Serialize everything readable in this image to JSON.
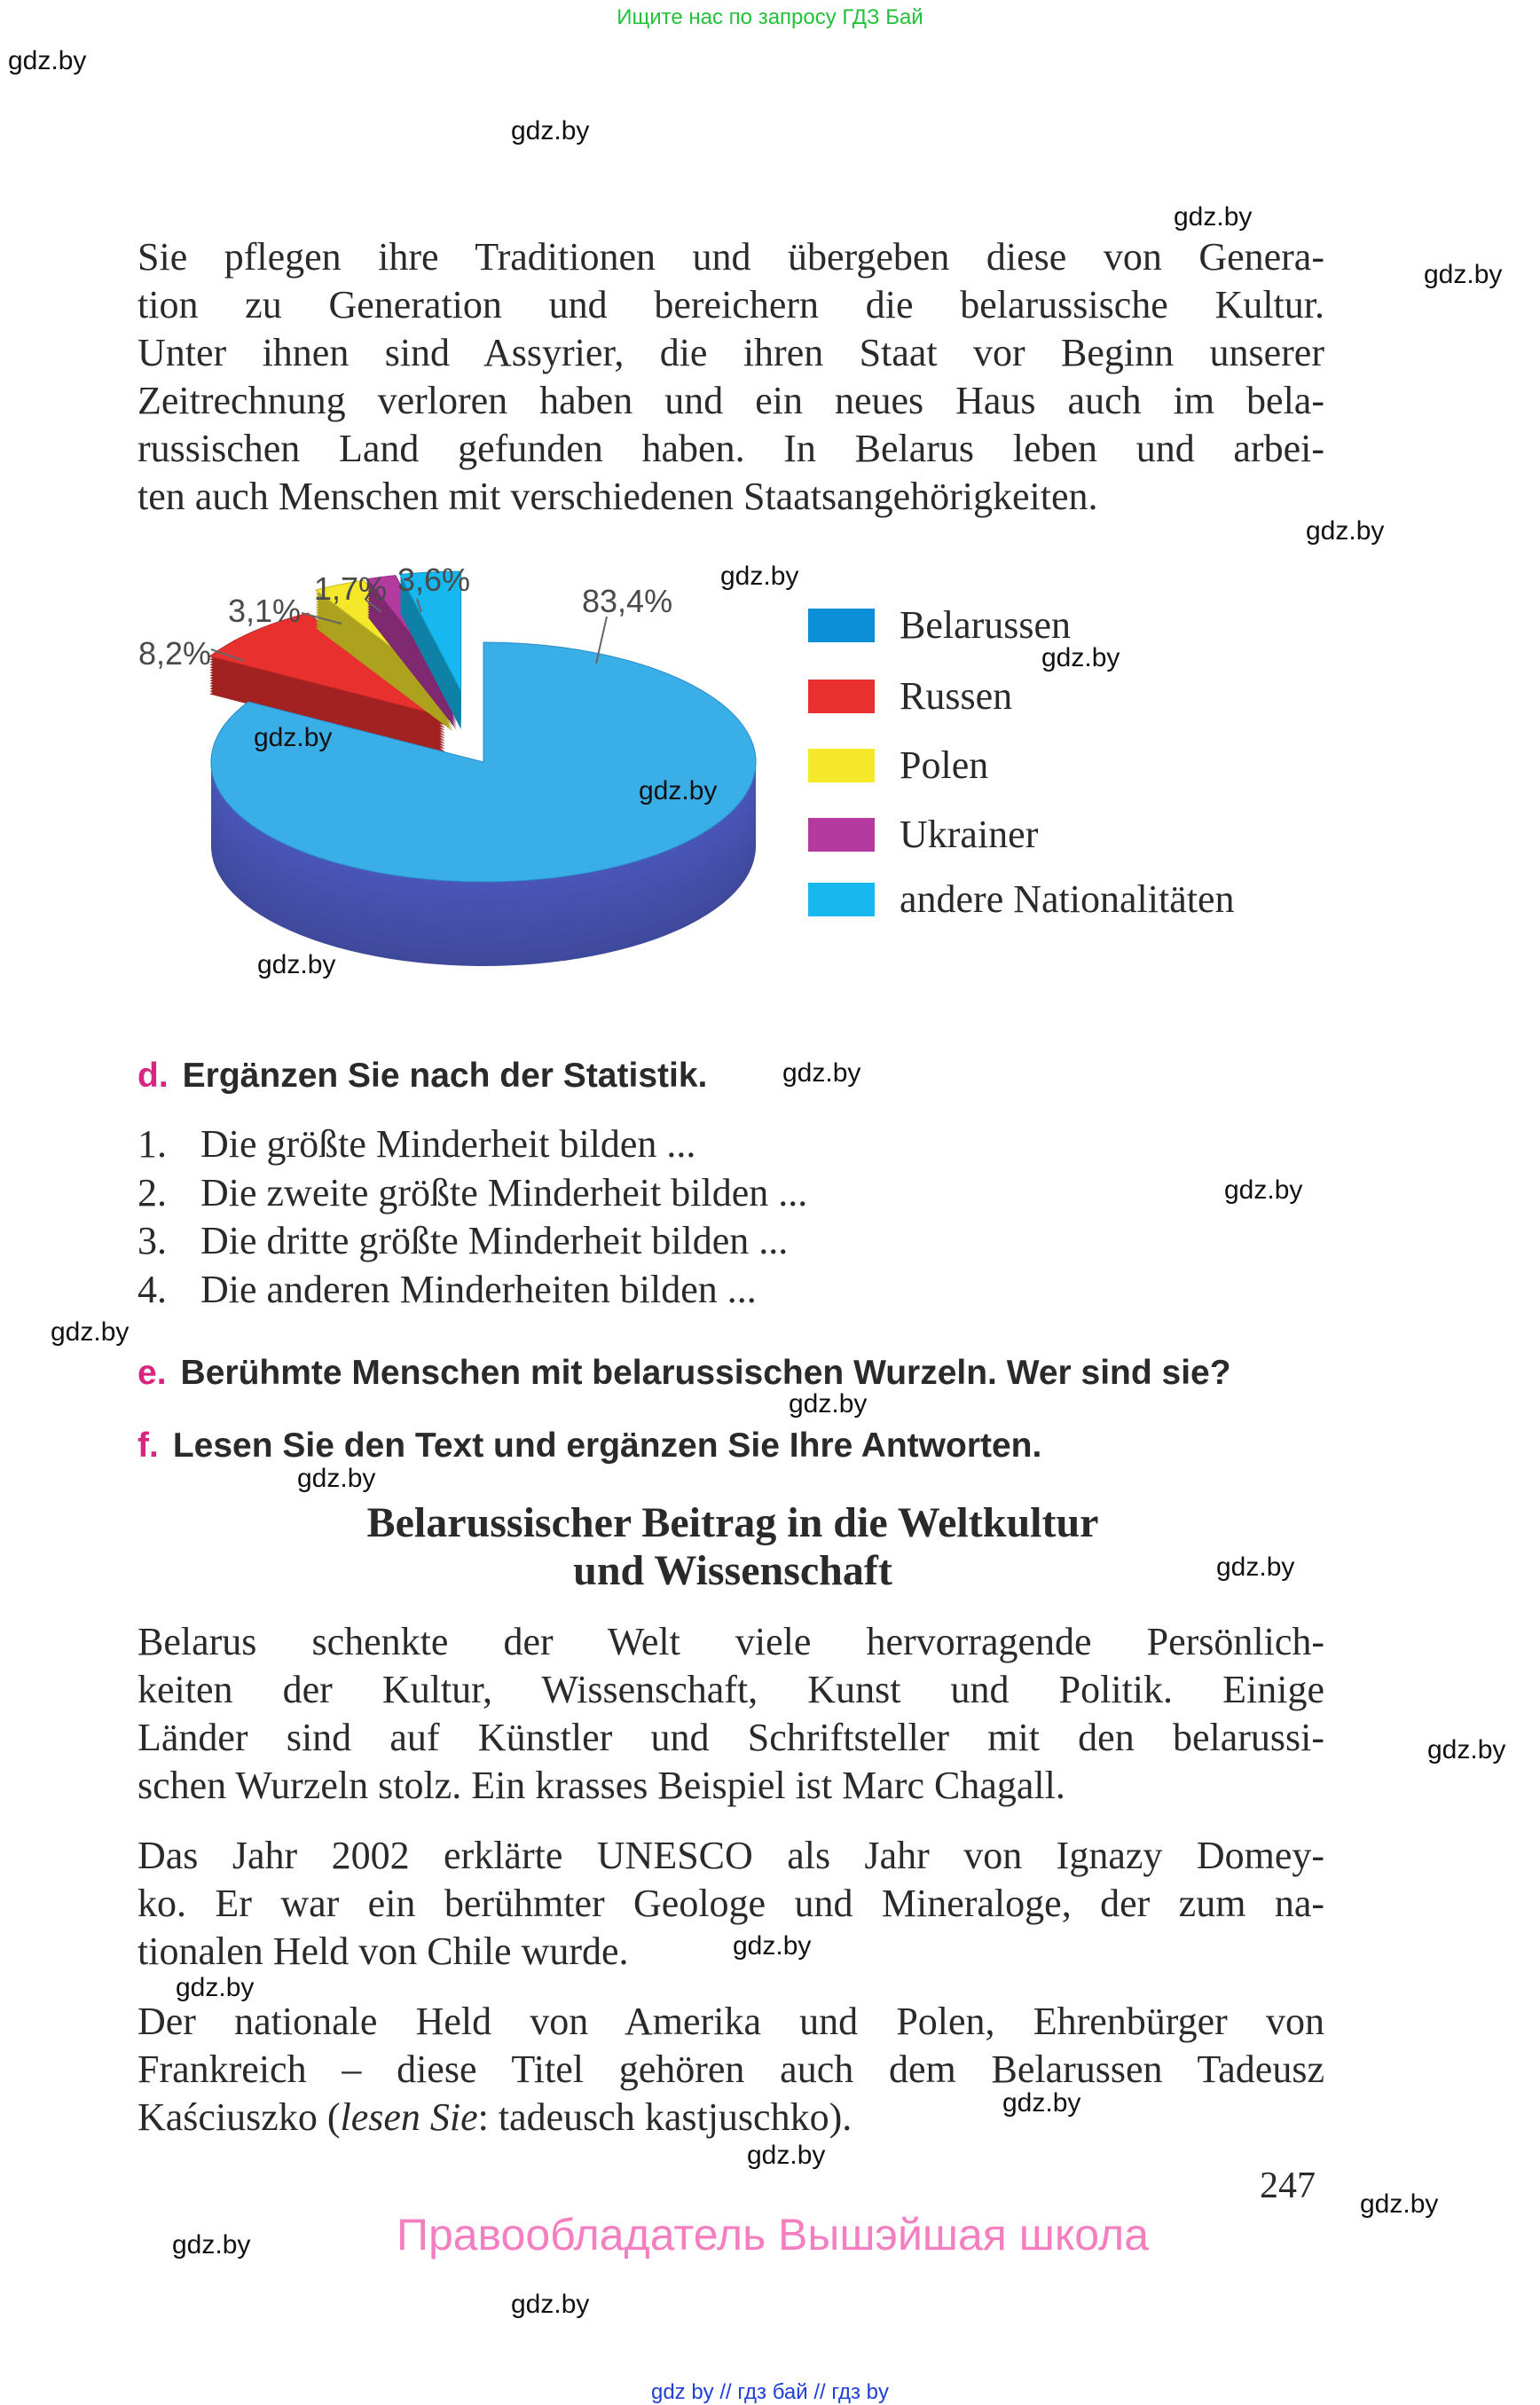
{
  "top_note": "Ищите нас по запросу ГДЗ Бай",
  "watermark": "gdz.by",
  "paragraph1": [
    "Sie pflegen ihre Traditionen und übergeben diese von Genera-",
    "tion zu Generation und bereichern die belarussische Kultur.",
    "Unter ihnen sind Assyrier, die ihren Staat vor Beginn unserer",
    "Zeitrechnung verloren haben und ein neues Haus auch im bela-",
    "russischen Land gefunden haben. In Belarus leben und arbei-",
    "ten auch Menschen mit verschiedenen Staatsangehörigkeiten."
  ],
  "chart_data": {
    "type": "pie",
    "style": "3d-exploded",
    "legend_position": "right",
    "categories": [
      "Belarussen",
      "Russen",
      "Polen",
      "Ukrainer",
      "andere Nationalitäten"
    ],
    "values": [
      83.4,
      8.2,
      3.1,
      1.7,
      3.6
    ],
    "data_labels": [
      "83,4%",
      "8,2%",
      "3,1%",
      "1,7%",
      "3,6%"
    ],
    "colors": [
      "#0b8fd6",
      "#e8312f",
      "#f5e82a",
      "#b53aa0",
      "#16b8ef"
    ]
  },
  "task_d": {
    "letter": "d.",
    "text": "Ergänzen Sie nach der Statistik."
  },
  "list": [
    {
      "num": "1.",
      "text": "Die größte Minderheit bilden ..."
    },
    {
      "num": "2.",
      "text": "Die zweite größte Minderheit bilden ..."
    },
    {
      "num": "3.",
      "text": "Die dritte größte Minderheit bilden ..."
    },
    {
      "num": "4.",
      "text": "Die anderen Minderheiten bilden ..."
    }
  ],
  "task_e": {
    "letter": "e.",
    "text": "Berühmte Menschen mit belarussischen Wurzeln. Wer sind sie?"
  },
  "task_f": {
    "letter": "f.",
    "text": "Lesen Sie den Text und ergänzen Sie Ihre Antworten."
  },
  "article_title": [
    "Belarussischer Beitrag in die Weltkultur",
    "und Wissenschaft"
  ],
  "paragraph2": [
    "Belarus schenkte der Welt viele hervorragende Persönlich-",
    "keiten der Kultur, Wissenschaft, Kunst und Politik. Einige",
    "Länder sind auf Künstler und Schriftsteller mit den belarussi-",
    "schen Wurzeln stolz. Ein krasses Beispiel ist Marc Chagall."
  ],
  "paragraph3": [
    "Das Jahr 2002 erklärte UNESCO als Jahr von Ignazy Domey-",
    "ko. Er war ein berühmter Geologe und Mineraloge, der zum na-",
    "tionalen Held von Chile wurde."
  ],
  "paragraph4": {
    "lines": [
      "Der nationale Held von Amerika und Polen, Ehrenbürger von",
      "Frankreich – diese Titel gehören auch dem Belarussen Tadeusz"
    ],
    "last_prefix": "Kaściuszko (",
    "last_italic": "lesen Sie",
    "last_suffix": ": tadeusch kastjuschko)."
  },
  "page_number": "247",
  "copyright": "Правообладатель Вышэйшая школа",
  "footer": "gdz by  //  гдз бай  //  гдз by"
}
